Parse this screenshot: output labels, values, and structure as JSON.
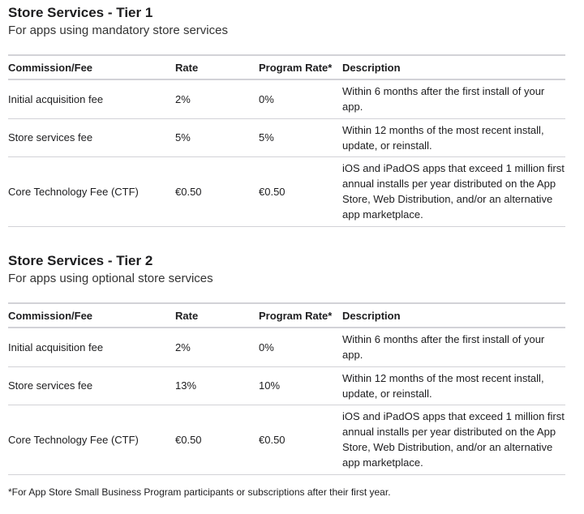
{
  "headers": [
    "Commission/Fee",
    "Rate",
    "Program Rate*",
    "Description"
  ],
  "tiers": [
    {
      "title": "Store Services - Tier 1",
      "subtitle": "For apps using mandatory store services",
      "rows": [
        [
          "Initial acquisition fee",
          "2%",
          "0%",
          "Within 6 months after the first install of your app."
        ],
        [
          "Store services fee",
          "5%",
          "5%",
          "Within 12 months of the most recent install, update, or reinstall."
        ],
        [
          "Core Technology Fee (CTF)",
          "€0.50",
          "€0.50",
          "iOS and iPadOS apps that exceed 1 million first annual installs per year distributed on the App Store, Web Distribution, and/or an alternative app marketplace."
        ]
      ]
    },
    {
      "title": "Store Services - Tier 2",
      "subtitle": "For apps using optional store services",
      "rows": [
        [
          "Initial acquisition fee",
          "2%",
          "0%",
          "Within 6 months after the first install of your app."
        ],
        [
          "Store services fee",
          "13%",
          "10%",
          "Within 12 months of the most recent install, update, or reinstall."
        ],
        [
          "Core Technology Fee (CTF)",
          "€0.50",
          "€0.50",
          "iOS and iPadOS apps that exceed 1 million first annual installs per year distributed on the App Store, Web Distribution, and/or an alternative app marketplace."
        ]
      ]
    }
  ],
  "footnote": "*For App Store Small Business Program participants or subscriptions after their first year."
}
